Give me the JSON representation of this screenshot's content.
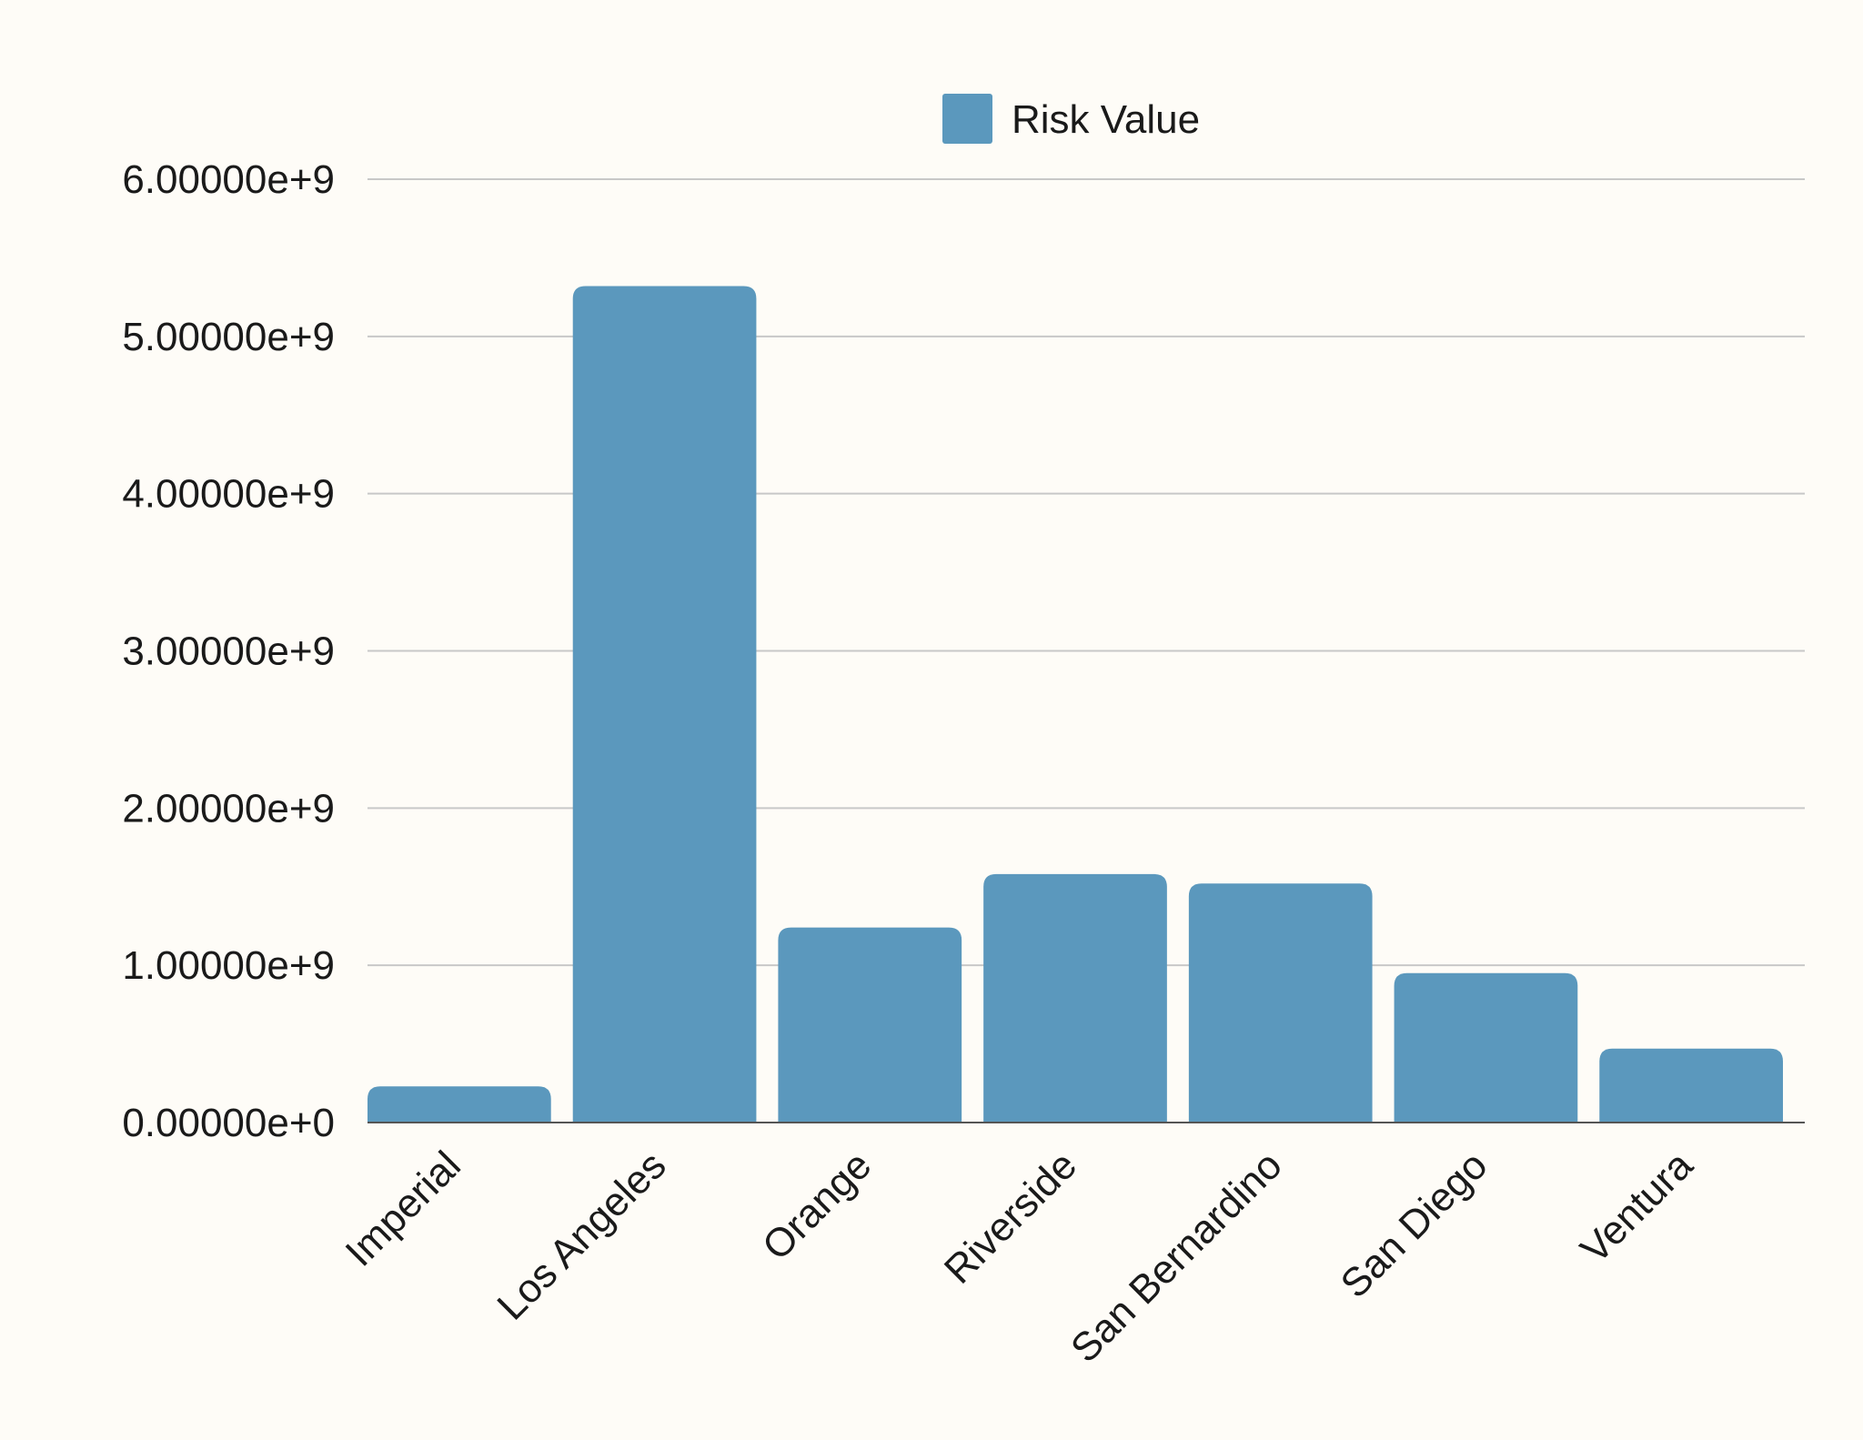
{
  "chart_data": {
    "type": "bar",
    "categories": [
      "Imperial",
      "Los Angeles",
      "Orange",
      "Riverside",
      "San Bernardino",
      "San Diego",
      "Ventura"
    ],
    "series": [
      {
        "name": "Risk Value",
        "color": "#5b98bd",
        "values": [
          230000000,
          5320000000,
          1240000000,
          1580000000,
          1520000000,
          950000000,
          470000000
        ]
      }
    ],
    "yticks": [
      {
        "value": 0,
        "label": "0.00000e+0"
      },
      {
        "value": 1000000000,
        "label": "1.00000e+9"
      },
      {
        "value": 2000000000,
        "label": "2.00000e+9"
      },
      {
        "value": 3000000000,
        "label": "3.00000e+9"
      },
      {
        "value": 4000000000,
        "label": "4.00000e+9"
      },
      {
        "value": 5000000000,
        "label": "5.00000e+9"
      },
      {
        "value": 6000000000,
        "label": "6.00000e+9"
      }
    ],
    "ylim": [
      0,
      6000000000
    ],
    "grid": true,
    "legend_position": "top-center",
    "title": "",
    "xlabel": "",
    "ylabel": ""
  }
}
